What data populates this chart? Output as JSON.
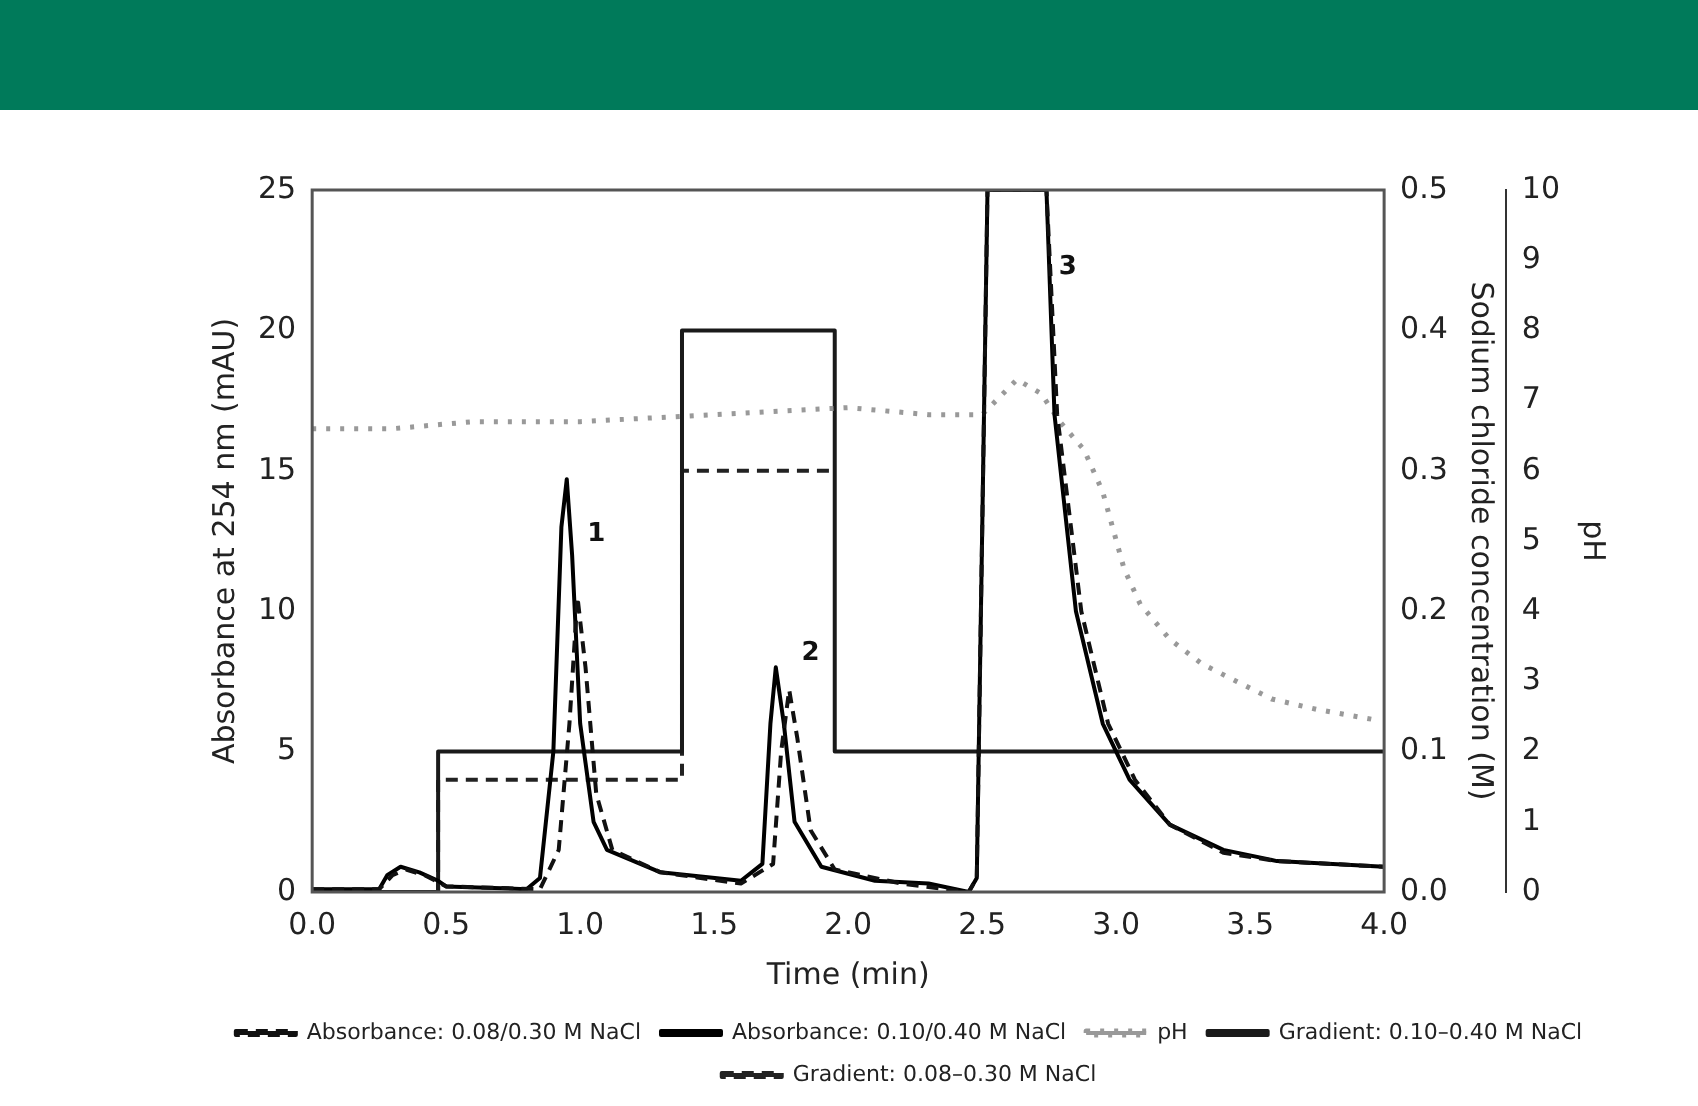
{
  "chart_data": {
    "type": "line",
    "xlabel": "Time (min)",
    "ylabel": "Absorbance at 254 nm (mAU)",
    "y2label": "Sodium chloride concentration (M)",
    "y3label": "pH",
    "xlim": [
      0,
      4
    ],
    "xticks": [
      {
        "value": 0,
        "label": "0.0"
      },
      {
        "value": 0.5,
        "label": "0.5"
      },
      {
        "value": 1,
        "label": "1.0"
      },
      {
        "value": 1.5,
        "label": "1.5"
      },
      {
        "value": 2,
        "label": "2.0"
      },
      {
        "value": 2.5,
        "label": "2.5"
      },
      {
        "value": 3,
        "label": "3.0"
      },
      {
        "value": 3.5,
        "label": "3.5"
      },
      {
        "value": 4,
        "label": "4.0"
      }
    ],
    "ylim": [
      0,
      25
    ],
    "yticks": [
      0,
      5,
      10,
      15,
      20,
      25
    ],
    "y2lim": [
      0,
      0.5
    ],
    "y2ticks": [
      {
        "value": 0,
        "label": "0.0"
      },
      {
        "value": 0.1,
        "label": "0.1"
      },
      {
        "value": 0.2,
        "label": "0.2"
      },
      {
        "value": 0.3,
        "label": "0.3"
      },
      {
        "value": 0.4,
        "label": "0.4"
      },
      {
        "value": 0.5,
        "label": "0.5"
      }
    ],
    "y3lim": [
      0,
      10
    ],
    "y3ticks": [
      0,
      1,
      2,
      3,
      4,
      5,
      6,
      7,
      8,
      9,
      10
    ],
    "grid": false,
    "legend": "bottom",
    "marker": "none",
    "annotations": [
      "1",
      "2",
      "3"
    ],
    "series": [
      {
        "name": "Absorbance: 0.08/0.30 M NaCl",
        "color": "#111111",
        "line_style": "dashed",
        "x": [
          0,
          0.25,
          0.3,
          0.35,
          0.42,
          0.5,
          0.85,
          0.92,
          0.96,
          0.99,
          1.02,
          1.06,
          1.12,
          1.3,
          1.6,
          1.72,
          1.75,
          1.78,
          1.81,
          1.86,
          1.95,
          2.2,
          2.45,
          2.48,
          2.52,
          2.74,
          2.78,
          2.87,
          2.97,
          3.07,
          3.2,
          3.4,
          3.6,
          4.0
        ],
        "values": [
          0.1,
          0.1,
          0.6,
          0.8,
          0.6,
          0.2,
          0.1,
          1.5,
          6,
          10.5,
          8,
          3.5,
          1.5,
          0.7,
          0.3,
          1,
          5,
          7.2,
          5.5,
          2.2,
          0.8,
          0.3,
          0,
          0.5,
          25,
          25,
          17,
          10,
          6,
          4,
          2.4,
          1.4,
          1.1,
          0.9
        ]
      },
      {
        "name": "Absorbance: 0.10/0.40 M NaCl",
        "color": "#000000",
        "line_style": "solid",
        "x": [
          0,
          0.25,
          0.28,
          0.33,
          0.4,
          0.47,
          0.5,
          0.8,
          0.85,
          0.9,
          0.93,
          0.95,
          0.97,
          1.0,
          1.05,
          1.1,
          1.3,
          1.6,
          1.68,
          1.71,
          1.73,
          1.76,
          1.8,
          1.9,
          2.1,
          2.3,
          2.45,
          2.48,
          2.52,
          2.74,
          2.77,
          2.85,
          2.95,
          3.05,
          3.2,
          3.4,
          3.6,
          4.0
        ],
        "values": [
          0.1,
          0.1,
          0.6,
          0.9,
          0.7,
          0.4,
          0.2,
          0.1,
          0.5,
          5,
          13,
          14.7,
          12,
          6,
          2.5,
          1.5,
          0.7,
          0.4,
          1,
          6,
          8,
          6,
          2.5,
          0.9,
          0.4,
          0.3,
          0,
          0.5,
          25,
          25,
          17,
          10,
          6,
          4,
          2.4,
          1.5,
          1.1,
          0.9
        ]
      },
      {
        "name": "pH",
        "color": "#999999",
        "line_style": "dotted",
        "axis": "y3",
        "x": [
          0,
          0.3,
          0.6,
          1.0,
          1.5,
          2.0,
          2.3,
          2.5,
          2.63,
          2.72,
          2.79,
          2.88,
          2.95,
          3.03,
          3.09,
          3.2,
          3.32,
          3.45,
          3.58,
          3.75,
          3.97
        ],
        "values": [
          6.6,
          6.6,
          6.7,
          6.7,
          6.8,
          6.9,
          6.8,
          6.8,
          7.3,
          7.1,
          6.7,
          6.3,
          5.7,
          4.6,
          4.1,
          3.6,
          3.25,
          3.0,
          2.75,
          2.6,
          2.45
        ]
      },
      {
        "name": "Gradient: 0.10–0.40 M NaCl",
        "color": "#1a1a1a",
        "line_style": "solid",
        "axis": "y2",
        "x": [
          0,
          0.47,
          0.47,
          1.38,
          1.38,
          1.95,
          1.95,
          4.0
        ],
        "values": [
          0,
          0,
          0.1,
          0.1,
          0.4,
          0.4,
          0.1,
          0.1
        ]
      },
      {
        "name": "Gradient: 0.08–0.30 M NaCl",
        "color": "#222222",
        "line_style": "dashed",
        "axis": "y2",
        "x": [
          0.47,
          0.47,
          1.38,
          1.38,
          1.95
        ],
        "values": [
          0,
          0.08,
          0.08,
          0.3,
          0.3
        ]
      }
    ]
  }
}
